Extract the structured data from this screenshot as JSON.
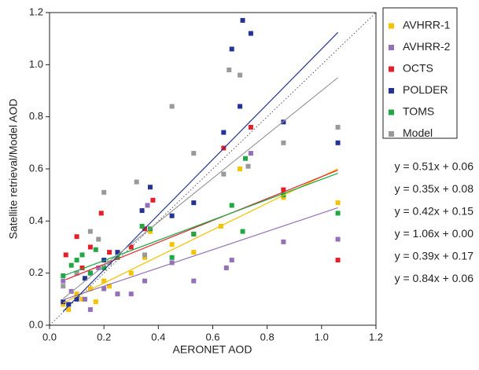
{
  "chart_data": {
    "type": "scatter",
    "xlabel": "AERONET AOD",
    "ylabel": "Satellite retrieval/Model AOD",
    "xlim": [
      0,
      1.2
    ],
    "ylim": [
      0,
      1.2
    ],
    "xticks": [
      {
        "value": 0,
        "label": "0.0"
      },
      0.2,
      0.4,
      0.6,
      0.8,
      {
        "value": 1,
        "label": "1.0"
      },
      1.2
    ],
    "yticks": [
      {
        "value": 0,
        "label": "0.0"
      },
      0.2,
      0.4,
      0.6,
      0.8,
      {
        "value": 1,
        "label": "1.0"
      },
      1.2
    ],
    "grid": false,
    "legend": "right",
    "series": [
      {
        "name": "AVHRR-1",
        "color": "#f5c200",
        "x": [
          0.05,
          0.07,
          0.1,
          0.12,
          0.15,
          0.17,
          0.2,
          0.22,
          0.25,
          0.3,
          0.35,
          0.37,
          0.45,
          0.53,
          0.63,
          0.7,
          0.86,
          1.06
        ],
        "values": [
          0.08,
          0.06,
          0.12,
          0.1,
          0.14,
          0.09,
          0.17,
          0.15,
          0.12,
          0.2,
          0.26,
          0.36,
          0.31,
          0.28,
          0.38,
          0.6,
          0.49,
          0.47
        ],
        "fit": {
          "label": "y = 0.51x + 0.06",
          "slope": 0.51,
          "intercept": 0.06
        }
      },
      {
        "name": "AVHRR-2",
        "color": "#9370b8",
        "x": [
          0.05,
          0.08,
          0.1,
          0.13,
          0.15,
          0.18,
          0.2,
          0.25,
          0.3,
          0.35,
          0.36,
          0.45,
          0.53,
          0.65,
          0.67,
          0.74,
          0.86,
          1.06
        ],
        "values": [
          0.17,
          0.13,
          0.2,
          0.1,
          0.06,
          0.22,
          0.14,
          0.12,
          0.12,
          0.17,
          0.46,
          0.24,
          0.17,
          0.22,
          0.25,
          0.66,
          0.32,
          0.33
        ],
        "fit": {
          "label": "y = 0.35x + 0.08",
          "slope": 0.35,
          "intercept": 0.08
        }
      },
      {
        "name": "OCTS",
        "color": "#e3202a",
        "x": [
          0.06,
          0.1,
          0.12,
          0.15,
          0.19,
          0.22,
          0.3,
          0.35,
          0.38,
          0.53,
          0.64,
          0.74,
          0.86,
          1.06
        ],
        "values": [
          0.27,
          0.34,
          0.22,
          0.3,
          0.43,
          0.28,
          0.3,
          0.37,
          0.48,
          0.35,
          0.68,
          0.76,
          0.52,
          0.25
        ],
        "fit": {
          "label": "y = 0.42x + 0.15",
          "slope": 0.42,
          "intercept": 0.15
        }
      },
      {
        "name": "POLDER",
        "color": "#253494",
        "x": [
          0.05,
          0.07,
          0.1,
          0.13,
          0.15,
          0.2,
          0.25,
          0.34,
          0.37,
          0.45,
          0.53,
          0.64,
          0.67,
          0.7,
          0.71,
          0.74,
          0.86,
          1.06
        ],
        "values": [
          0.09,
          0.08,
          0.1,
          0.18,
          0.2,
          0.25,
          0.28,
          0.44,
          0.53,
          0.42,
          0.47,
          0.74,
          1.06,
          0.84,
          1.17,
          1.12,
          0.78,
          0.7
        ],
        "fit": {
          "label": "y = 1.06x + 0.00",
          "slope": 1.06,
          "intercept": 0
        }
      },
      {
        "name": "TOMS",
        "color": "#1fa843",
        "x": [
          0.05,
          0.08,
          0.1,
          0.12,
          0.15,
          0.17,
          0.2,
          0.25,
          0.34,
          0.37,
          0.45,
          0.53,
          0.67,
          0.71,
          0.72,
          0.86,
          1.06
        ],
        "values": [
          0.19,
          0.23,
          0.25,
          0.27,
          0.2,
          0.29,
          0.22,
          0.26,
          0.38,
          0.37,
          0.26,
          0.35,
          0.46,
          0.36,
          0.64,
          0.5,
          0.43
        ],
        "fit": {
          "label": "y = 0.39x + 0.17",
          "slope": 0.39,
          "intercept": 0.17
        }
      },
      {
        "name": "Model",
        "color": "#999999",
        "x": [
          0.05,
          0.1,
          0.15,
          0.18,
          0.2,
          0.22,
          0.32,
          0.35,
          0.45,
          0.53,
          0.64,
          0.66,
          0.7,
          0.73,
          0.86,
          1.06
        ],
        "values": [
          0.15,
          0.2,
          0.36,
          0.33,
          0.51,
          0.24,
          0.55,
          0.27,
          0.84,
          0.66,
          0.58,
          0.98,
          0.96,
          0.61,
          0.7,
          0.76
        ],
        "fit": {
          "label": "y = 0.84x + 0.06",
          "slope": 0.84,
          "intercept": 0.06
        }
      }
    ]
  }
}
